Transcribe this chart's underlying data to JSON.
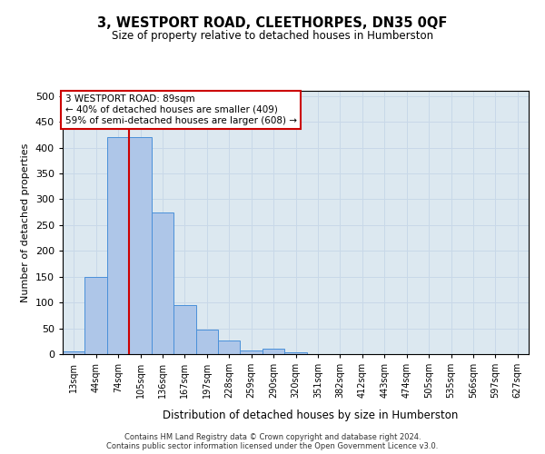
{
  "title": "3, WESTPORT ROAD, CLEETHORPES, DN35 0QF",
  "subtitle": "Size of property relative to detached houses in Humberston",
  "xlabel": "Distribution of detached houses by size in Humberston",
  "ylabel": "Number of detached properties",
  "footer_line1": "Contains HM Land Registry data © Crown copyright and database right 2024.",
  "footer_line2": "Contains public sector information licensed under the Open Government Licence v3.0.",
  "categories": [
    "13sqm",
    "44sqm",
    "74sqm",
    "105sqm",
    "136sqm",
    "167sqm",
    "197sqm",
    "228sqm",
    "259sqm",
    "290sqm",
    "320sqm",
    "351sqm",
    "382sqm",
    "412sqm",
    "443sqm",
    "474sqm",
    "505sqm",
    "535sqm",
    "566sqm",
    "597sqm",
    "627sqm"
  ],
  "bar_values": [
    5,
    150,
    420,
    420,
    275,
    95,
    48,
    27,
    7,
    10,
    3,
    0,
    0,
    0,
    0,
    0,
    0,
    0,
    0,
    0,
    0
  ],
  "bar_color": "#aec6e8",
  "bar_edge_color": "#4a90d9",
  "vline_x_index": 2,
  "vline_color": "#cc0000",
  "annotation_text": "3 WESTPORT ROAD: 89sqm\n← 40% of detached houses are smaller (409)\n59% of semi-detached houses are larger (608) →",
  "annotation_box_edgecolor": "#cc0000",
  "annotation_box_facecolor": "#ffffff",
  "ylim": [
    0,
    510
  ],
  "yticks": [
    0,
    50,
    100,
    150,
    200,
    250,
    300,
    350,
    400,
    450,
    500
  ],
  "grid_color": "#c8d8e8",
  "background_color": "#dce8f0",
  "fig_background": "#ffffff"
}
